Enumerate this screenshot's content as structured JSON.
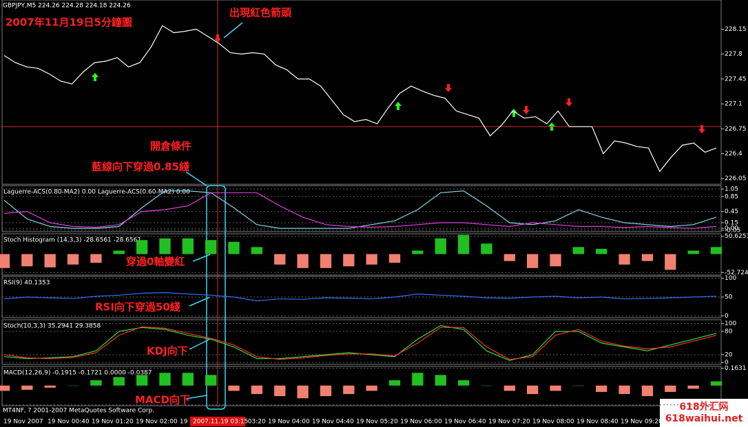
{
  "header": {
    "symbol_line": "GBPJPY,M5  224.26 224.28 224.18 224.26"
  },
  "annotations": [
    "2007年11月19日5分鐘圖",
    "出現紅色箭頭",
    "開倉條件",
    "藍線向下穿過0.85綫",
    "穿過0軸變紅",
    "RSI向下穿過50綫",
    "KDJ向下",
    "MACD向下"
  ],
  "panels": [
    {
      "label": "",
      "ylim": [
        225.97,
        228.56
      ],
      "yticks": [
        228.15,
        227.8,
        227.45,
        227.1,
        226.75,
        226.4,
        226.05
      ],
      "hline": 226.78,
      "series": [
        {
          "style": "line",
          "color": "#ffffff",
          "values": [
            227.78,
            227.68,
            227.62,
            227.6,
            227.52,
            227.42,
            227.38,
            227.55,
            227.68,
            227.7,
            227.75,
            227.62,
            227.68,
            227.9,
            228.2,
            228.1,
            228.12,
            228.15,
            228.05,
            227.95,
            227.82,
            227.8,
            227.82,
            227.8,
            227.65,
            227.58,
            227.45,
            227.45,
            227.35,
            227.15,
            226.95,
            226.85,
            226.88,
            226.82,
            227.05,
            227.25,
            227.35,
            227.28,
            227.22,
            227.18,
            227.0,
            226.95,
            226.9,
            226.65,
            226.8,
            227.0,
            226.9,
            226.92,
            226.82,
            227.0,
            226.78,
            226.78,
            226.78,
            226.4,
            226.58,
            226.55,
            226.5,
            226.48,
            226.15,
            226.35,
            226.52,
            226.55,
            226.42,
            226.48
          ]
        }
      ]
    },
    {
      "label": "Laguerre-ACS(0.80-MA2) 0.00  Laguerre-ACS(0.60-MA2) 0.00",
      "ylim": [
        -0.09,
        1.14
      ],
      "yticks": [
        1.05,
        0.85,
        0.45,
        0.15,
        {
          "value": 0,
          "label": "0.00"
        },
        -0.05
      ],
      "series": [
        {
          "style": "line",
          "color": "#7fd8e8",
          "values": [
            0.75,
            0.25,
            0.05,
            0,
            0,
            0.05,
            0.55,
            1.0,
            1.0,
            0.95,
            0.55,
            0.1,
            0,
            0,
            0,
            0,
            0.1,
            0.2,
            0.5,
            0.95,
            1.0,
            0.6,
            0.15,
            0.1,
            0.2,
            0.5,
            0.3,
            0.15,
            0.1,
            0.05,
            0.1,
            0.3
          ]
        },
        {
          "style": "line",
          "color": "#e040e0",
          "values": [
            0.4,
            0.45,
            0.15,
            0.05,
            0.03,
            0.1,
            0.45,
            0.5,
            0.6,
            0.95,
            0.95,
            0.95,
            0.6,
            0.3,
            0.1,
            0.05,
            0.03,
            0.05,
            0.1,
            0.15,
            0.15,
            0.1,
            0.05,
            0.15,
            0.1,
            0.05,
            0.05,
            0.02,
            0.05,
            0.02,
            0,
            0.05
          ]
        }
      ]
    },
    {
      "label": "Stoch Histogram (14,3,3) -28.6561 -28.6561",
      "ylim": [
        -60,
        58
      ],
      "yticks": [
        50.6253,
        -52.724
      ],
      "series": [
        {
          "style": "hist",
          "color": "#20c020",
          "neg_color": "#f08070",
          "values": [
            -40,
            -35,
            -38,
            -30,
            -25,
            10,
            40,
            45,
            45,
            40,
            35,
            20,
            -30,
            -40,
            -40,
            -35,
            -30,
            -25,
            10,
            45,
            55,
            30,
            -20,
            -40,
            -35,
            20,
            15,
            -30,
            -20,
            -45,
            10,
            20
          ]
        }
      ]
    },
    {
      "label": "RSI(9) 40.1353",
      "ylim": [
        -5,
        105
      ],
      "yticks": [
        100,
        50,
        0
      ],
      "series": [
        {
          "style": "line",
          "color": "#3070ff",
          "values": [
            45,
            50,
            48,
            46,
            52,
            55,
            60,
            62,
            58,
            55,
            50,
            40,
            45,
            44,
            48,
            47,
            45,
            50,
            58,
            55,
            52,
            48,
            47,
            50,
            52,
            48,
            50,
            45,
            46,
            48,
            50,
            52
          ]
        }
      ]
    },
    {
      "label": "Stoch(10,3,3) 35.2941 29.3858",
      "ylim": [
        -5,
        110
      ],
      "yticks": [
        100,
        80,
        20,
        0
      ],
      "series": [
        {
          "style": "line",
          "color": "#30e030",
          "values": [
            15,
            10,
            12,
            15,
            30,
            80,
            90,
            85,
            70,
            60,
            40,
            10,
            10,
            15,
            20,
            25,
            20,
            15,
            60,
            95,
            85,
            30,
            5,
            20,
            80,
            80,
            50,
            40,
            30,
            45,
            60,
            75
          ]
        },
        {
          "style": "line",
          "color": "#ff3030",
          "values": [
            20,
            12,
            10,
            13,
            25,
            70,
            92,
            88,
            75,
            62,
            45,
            15,
            8,
            12,
            18,
            22,
            22,
            17,
            50,
            90,
            90,
            40,
            8,
            15,
            70,
            85,
            55,
            42,
            35,
            40,
            55,
            70
          ]
        }
      ]
    },
    {
      "label": "MACD(12,26,9) -0.1915 -0.1721 0.0000 -0.0387",
      "ylim": [
        -0.19,
        0.18
      ],
      "yticks": [
        0.1631,
        -0.1815
      ],
      "series": [
        {
          "style": "hist",
          "color": "#20c020",
          "neg_color": "#f08070",
          "values": [
            -0.05,
            -0.04,
            -0.02,
            0,
            0.05,
            0.08,
            0.1,
            0.12,
            0.12,
            0.1,
            -0.05,
            -0.08,
            -0.1,
            -0.12,
            -0.1,
            -0.08,
            -0.05,
            0.05,
            0.12,
            0.1,
            0.05,
            0,
            -0.05,
            -0.08,
            -0.05,
            0,
            -0.06,
            -0.08,
            -0.1,
            -0.06,
            -0.03,
            0.04
          ]
        }
      ]
    }
  ],
  "time_axis": {
    "labels": [
      "19 Nov 2007",
      "19 Nov 00:40",
      "19 Nov 01:20",
      "19 Nov 02:00",
      "19 Nov 02:40",
      "19 Nov 03:20",
      "19 Nov 04:00",
      "19 Nov 04:40",
      "19 Nov 05:20",
      "19 Nov 06:00",
      "19 Nov 06:40",
      "19 Nov 07:20",
      "19 Nov 08:00",
      "19 Nov 08:40",
      "19 Nov 09:20"
    ],
    "cursor_time": "2007.11.19 03:15"
  },
  "copyright": "MT4NF, ? 2001-2007 MetaQuotes Software Corp.",
  "watermark": {
    "title": "618外汇网",
    "url": "618waihui.net"
  }
}
